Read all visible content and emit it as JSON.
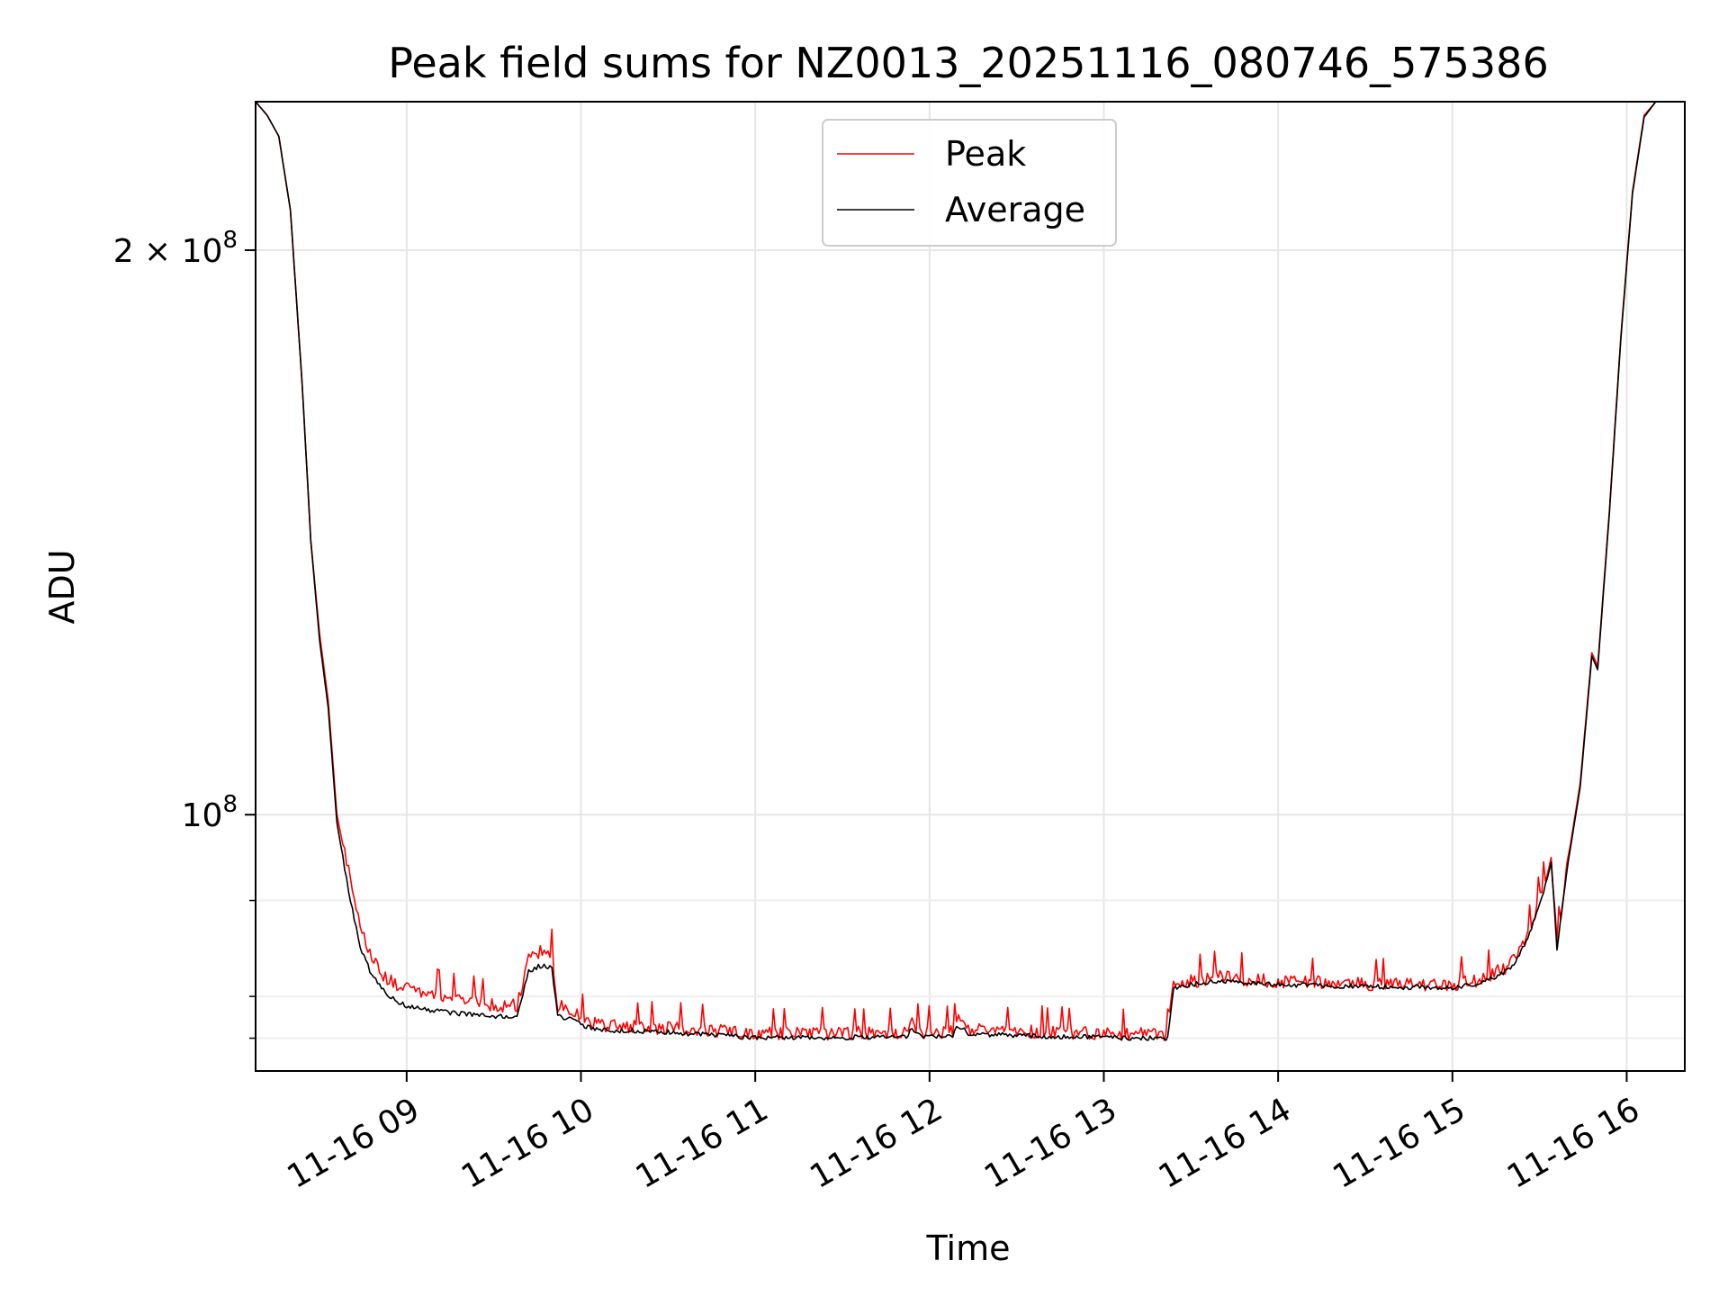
{
  "chart_data": {
    "type": "line",
    "title": "Peak field sums for NZ0013_20251116_080746_575386",
    "xlabel": "Time",
    "ylabel": "ADU",
    "y_scale": "log",
    "grid": true,
    "legend_position": "top-center",
    "xlim": [
      "2025-11-16T08:08",
      "2025-11-16T16:20"
    ],
    "ylim": [
      73000000,
      240000000
    ],
    "x_ticks": [
      {
        "t": "2025-11-16T09:00",
        "label": "11-16 09"
      },
      {
        "t": "2025-11-16T10:00",
        "label": "11-16 10"
      },
      {
        "t": "2025-11-16T11:00",
        "label": "11-16 11"
      },
      {
        "t": "2025-11-16T12:00",
        "label": "11-16 12"
      },
      {
        "t": "2025-11-16T13:00",
        "label": "11-16 13"
      },
      {
        "t": "2025-11-16T14:00",
        "label": "11-16 14"
      },
      {
        "t": "2025-11-16T15:00",
        "label": "11-16 15"
      },
      {
        "t": "2025-11-16T16:00",
        "label": "11-16 16"
      }
    ],
    "y_major_ticks": [
      {
        "value": 100000000,
        "base": "10",
        "exp": "8"
      },
      {
        "value": 200000000,
        "base": "2 × 10",
        "exp": "8"
      }
    ],
    "y_minor_ticks": [
      76000000,
      80000000,
      90000000
    ],
    "series": [
      {
        "name": "Peak",
        "color": "#ff0000",
        "points": [
          [
            "2025-11-16T08:08",
            240000000
          ],
          [
            "2025-11-16T08:12",
            236000000
          ],
          [
            "2025-11-16T08:16",
            230000000
          ],
          [
            "2025-11-16T08:20",
            210000000
          ],
          [
            "2025-11-16T08:24",
            170000000
          ],
          [
            "2025-11-16T08:27",
            140000000
          ],
          [
            "2025-11-16T08:30",
            125000000
          ],
          [
            "2025-11-16T08:33",
            115000000
          ],
          [
            "2025-11-16T08:36",
            100000000
          ],
          [
            "2025-11-16T08:40",
            93000000
          ],
          [
            "2025-11-16T08:44",
            87000000
          ],
          [
            "2025-11-16T08:48",
            84000000
          ],
          [
            "2025-11-16T08:52",
            82000000
          ],
          [
            "2025-11-16T08:56",
            81000000
          ],
          [
            "2025-11-16T09:00",
            80500000
          ],
          [
            "2025-11-16T09:10",
            80000000
          ],
          [
            "2025-11-16T09:20",
            79500000
          ],
          [
            "2025-11-16T09:30",
            79000000
          ],
          [
            "2025-11-16T09:38",
            79000000
          ],
          [
            "2025-11-16T09:42",
            83500000
          ],
          [
            "2025-11-16T09:46",
            84500000
          ],
          [
            "2025-11-16T09:50",
            84000000
          ],
          [
            "2025-11-16T09:52",
            79000000
          ],
          [
            "2025-11-16T09:56",
            78500000
          ],
          [
            "2025-11-16T10:00",
            77800000
          ],
          [
            "2025-11-16T10:06",
            77000000
          ],
          [
            "2025-11-16T10:30",
            76800000
          ],
          [
            "2025-11-16T11:00",
            76300000
          ],
          [
            "2025-11-16T11:30",
            76300000
          ],
          [
            "2025-11-16T11:52",
            76400000
          ],
          [
            "2025-11-16T11:54",
            77200000
          ],
          [
            "2025-11-16T11:58",
            76400000
          ],
          [
            "2025-11-16T12:08",
            76500000
          ],
          [
            "2025-11-16T12:10",
            77500000
          ],
          [
            "2025-11-16T12:14",
            76600000
          ],
          [
            "2025-11-16T12:30",
            76500000
          ],
          [
            "2025-11-16T13:00",
            76300000
          ],
          [
            "2025-11-16T13:22",
            76200000
          ],
          [
            "2025-11-16T13:24",
            81000000
          ],
          [
            "2025-11-16T13:30",
            81300000
          ],
          [
            "2025-11-16T13:40",
            81800000
          ],
          [
            "2025-11-16T13:50",
            81500000
          ],
          [
            "2025-11-16T14:00",
            81300000
          ],
          [
            "2025-11-16T14:30",
            81100000
          ],
          [
            "2025-11-16T15:00",
            81000000
          ],
          [
            "2025-11-16T15:10",
            81500000
          ],
          [
            "2025-11-16T15:20",
            83000000
          ],
          [
            "2025-11-16T15:26",
            86000000
          ],
          [
            "2025-11-16T15:32",
            92000000
          ],
          [
            "2025-11-16T15:34",
            95000000
          ],
          [
            "2025-11-16T15:36",
            85000000
          ],
          [
            "2025-11-16T15:40",
            95000000
          ],
          [
            "2025-11-16T15:44",
            104000000
          ],
          [
            "2025-11-16T15:48",
            122000000
          ],
          [
            "2025-11-16T15:50",
            120000000
          ],
          [
            "2025-11-16T15:54",
            145000000
          ],
          [
            "2025-11-16T15:58",
            180000000
          ],
          [
            "2025-11-16T16:02",
            215000000
          ],
          [
            "2025-11-16T16:06",
            236000000
          ],
          [
            "2025-11-16T16:10",
            240000000
          ]
        ]
      },
      {
        "name": "Average",
        "color": "#000000",
        "points": [
          [
            "2025-11-16T08:08",
            240000000
          ],
          [
            "2025-11-16T08:12",
            236000000
          ],
          [
            "2025-11-16T08:16",
            230000000
          ],
          [
            "2025-11-16T08:20",
            210000000
          ],
          [
            "2025-11-16T08:24",
            170000000
          ],
          [
            "2025-11-16T08:27",
            140000000
          ],
          [
            "2025-11-16T08:30",
            124000000
          ],
          [
            "2025-11-16T08:33",
            114000000
          ],
          [
            "2025-11-16T08:36",
            99000000
          ],
          [
            "2025-11-16T08:40",
            91000000
          ],
          [
            "2025-11-16T08:44",
            85000000
          ],
          [
            "2025-11-16T08:48",
            82000000
          ],
          [
            "2025-11-16T08:52",
            80500000
          ],
          [
            "2025-11-16T08:56",
            79500000
          ],
          [
            "2025-11-16T09:00",
            79000000
          ],
          [
            "2025-11-16T09:10",
            78500000
          ],
          [
            "2025-11-16T09:20",
            78200000
          ],
          [
            "2025-11-16T09:30",
            78000000
          ],
          [
            "2025-11-16T09:38",
            78000000
          ],
          [
            "2025-11-16T09:42",
            82500000
          ],
          [
            "2025-11-16T09:46",
            83000000
          ],
          [
            "2025-11-16T09:50",
            82800000
          ],
          [
            "2025-11-16T09:52",
            78000000
          ],
          [
            "2025-11-16T09:56",
            77800000
          ],
          [
            "2025-11-16T10:00",
            77200000
          ],
          [
            "2025-11-16T10:06",
            76700000
          ],
          [
            "2025-11-16T10:30",
            76500000
          ],
          [
            "2025-11-16T11:00",
            76000000
          ],
          [
            "2025-11-16T11:30",
            76000000
          ],
          [
            "2025-11-16T11:52",
            76100000
          ],
          [
            "2025-11-16T11:54",
            76900000
          ],
          [
            "2025-11-16T11:58",
            76100000
          ],
          [
            "2025-11-16T12:08",
            76200000
          ],
          [
            "2025-11-16T12:10",
            77100000
          ],
          [
            "2025-11-16T12:14",
            76300000
          ],
          [
            "2025-11-16T12:30",
            76200000
          ],
          [
            "2025-11-16T13:00",
            76000000
          ],
          [
            "2025-11-16T13:22",
            75900000
          ],
          [
            "2025-11-16T13:24",
            80800000
          ],
          [
            "2025-11-16T13:30",
            81100000
          ],
          [
            "2025-11-16T13:40",
            81500000
          ],
          [
            "2025-11-16T13:50",
            81300000
          ],
          [
            "2025-11-16T14:00",
            81100000
          ],
          [
            "2025-11-16T14:30",
            80900000
          ],
          [
            "2025-11-16T15:00",
            80800000
          ],
          [
            "2025-11-16T15:10",
            81200000
          ],
          [
            "2025-11-16T15:20",
            82700000
          ],
          [
            "2025-11-16T15:26",
            85700000
          ],
          [
            "2025-11-16T15:32",
            91500000
          ],
          [
            "2025-11-16T15:34",
            94500000
          ],
          [
            "2025-11-16T15:36",
            84800000
          ],
          [
            "2025-11-16T15:40",
            94600000
          ],
          [
            "2025-11-16T15:44",
            103500000
          ],
          [
            "2025-11-16T15:48",
            121500000
          ],
          [
            "2025-11-16T15:50",
            119500000
          ],
          [
            "2025-11-16T15:54",
            144500000
          ],
          [
            "2025-11-16T15:58",
            179500000
          ],
          [
            "2025-11-16T16:02",
            214500000
          ],
          [
            "2025-11-16T16:06",
            235500000
          ],
          [
            "2025-11-16T16:10",
            240000000
          ]
        ]
      }
    ]
  }
}
